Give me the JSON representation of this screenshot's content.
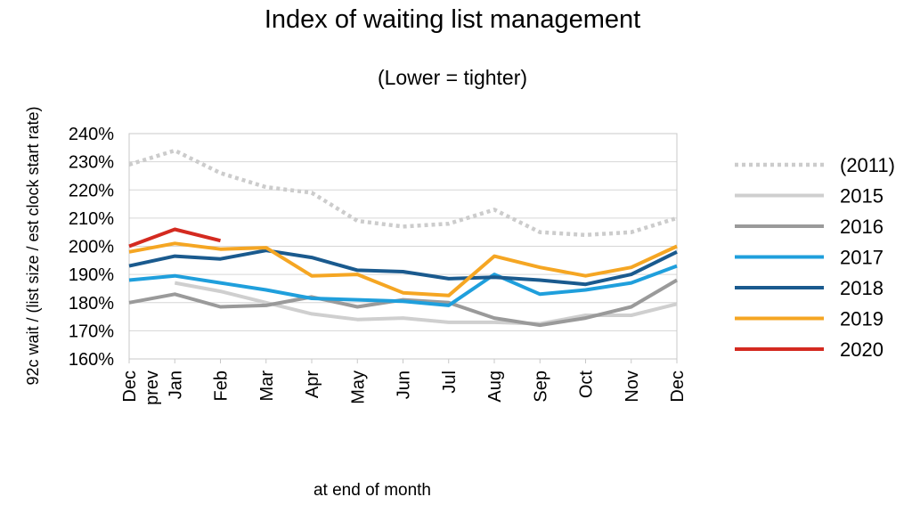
{
  "chart_data": {
    "type": "line",
    "title": "Index of waiting list management",
    "subtitle": "(Lower = tighter)",
    "xlabel": "at end of month",
    "ylabel": "92c wait / (list size / est clock start rate)",
    "categories": [
      "Dec prev",
      "Jan",
      "Feb",
      "Mar",
      "Apr",
      "May",
      "Jun",
      "Jul",
      "Aug",
      "Sep",
      "Oct",
      "Nov",
      "Dec"
    ],
    "ylim": [
      1.6,
      2.4
    ],
    "yticks": [
      1.6,
      1.7,
      1.8,
      1.9,
      2.0,
      2.1,
      2.2,
      2.3,
      2.4
    ],
    "ytick_labels": [
      "160%",
      "170%",
      "180%",
      "190%",
      "200%",
      "210%",
      "220%",
      "230%",
      "240%"
    ],
    "grid": "horizontal",
    "legend_position": "right",
    "series": [
      {
        "name": "(2011)",
        "color": "#cccccc",
        "dashed": true,
        "values": [
          2.29,
          2.34,
          2.26,
          2.21,
          2.19,
          2.09,
          2.07,
          2.08,
          2.13,
          2.05,
          2.04,
          2.05,
          2.1
        ]
      },
      {
        "name": "2015",
        "color": "#cfcfcf",
        "dashed": false,
        "values": [
          null,
          1.87,
          1.84,
          1.8,
          1.76,
          1.74,
          1.745,
          1.73,
          1.73,
          1.725,
          1.755,
          1.755,
          1.795
        ]
      },
      {
        "name": "2016",
        "color": "#9a9a9a",
        "dashed": false,
        "values": [
          1.8,
          1.83,
          1.785,
          1.79,
          1.82,
          1.785,
          1.81,
          1.8,
          1.745,
          1.72,
          1.745,
          1.785,
          1.88
        ]
      },
      {
        "name": "2017",
        "color": "#1f9fdc",
        "dashed": false,
        "values": [
          1.88,
          1.895,
          1.87,
          1.845,
          1.815,
          1.81,
          1.805,
          1.79,
          1.9,
          1.83,
          1.845,
          1.87,
          1.93
        ]
      },
      {
        "name": "2018",
        "color": "#1a5a8e",
        "dashed": false,
        "values": [
          1.93,
          1.965,
          1.955,
          1.985,
          1.96,
          1.915,
          1.91,
          1.885,
          1.89,
          1.88,
          1.865,
          1.9,
          1.98
        ]
      },
      {
        "name": "2019",
        "color": "#f5a623",
        "dashed": false,
        "values": [
          1.98,
          2.01,
          1.99,
          1.995,
          1.895,
          1.9,
          1.835,
          1.825,
          1.965,
          1.925,
          1.895,
          1.925,
          2.0
        ]
      },
      {
        "name": "2020",
        "color": "#d42a20",
        "dashed": false,
        "values": [
          2.0,
          2.06,
          2.02,
          null,
          null,
          null,
          null,
          null,
          null,
          null,
          null,
          null,
          null
        ]
      }
    ]
  }
}
